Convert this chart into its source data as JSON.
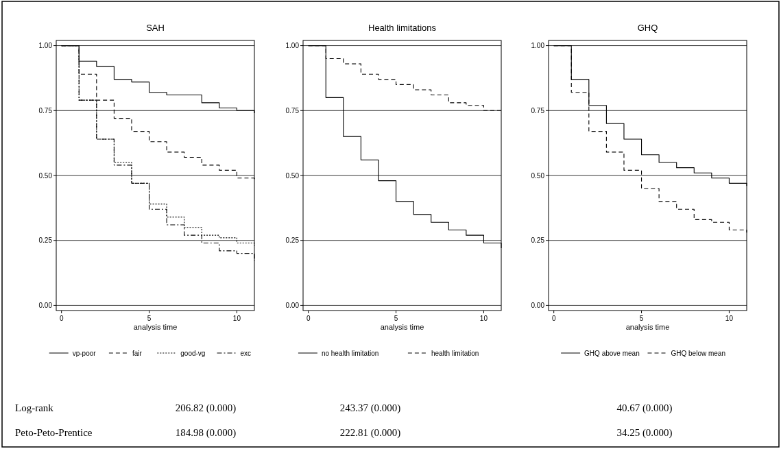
{
  "chart_data": [
    {
      "type": "step",
      "title": "SAH",
      "xlabel": "analysis time",
      "x": [
        0,
        1,
        2,
        3,
        4,
        5,
        6,
        7,
        8,
        9,
        10,
        11
      ],
      "xlim": [
        -0.3,
        11
      ],
      "xticks": [
        0,
        5,
        10
      ],
      "ylim": [
        -0.02,
        1.02
      ],
      "yticks": [
        {
          "value": 0,
          "label": "0.00"
        },
        {
          "value": 0.25,
          "label": "0.25"
        },
        {
          "value": 0.5,
          "label": "0.50"
        },
        {
          "value": 0.75,
          "label": "0.75"
        },
        {
          "value": 1,
          "label": "1.00"
        }
      ],
      "grid": "y",
      "legend": "bottom",
      "series": [
        {
          "name": "vp-poor",
          "color": "#000000",
          "line_style": "solid",
          "values": [
            1,
            0.94,
            0.92,
            0.87,
            0.86,
            0.82,
            0.81,
            0.81,
            0.78,
            0.76,
            0.75,
            0.74
          ]
        },
        {
          "name": "fair",
          "color": "#000000",
          "line_style": "dashed",
          "values": [
            1,
            0.89,
            0.79,
            0.72,
            0.67,
            0.63,
            0.59,
            0.57,
            0.54,
            0.52,
            0.49,
            0.48
          ]
        },
        {
          "name": "good-vg",
          "color": "#000000",
          "line_style": "dotted",
          "values": [
            1,
            0.79,
            0.64,
            0.55,
            0.47,
            0.39,
            0.34,
            0.3,
            0.27,
            0.26,
            0.24,
            0.23
          ]
        },
        {
          "name": "exc",
          "color": "#000000",
          "line_style": "dashdot",
          "values": [
            1,
            0.79,
            0.64,
            0.54,
            0.47,
            0.37,
            0.31,
            0.27,
            0.24,
            0.21,
            0.2,
            0.17
          ]
        }
      ],
      "annotations": [
        "Log-rank",
        "Peto-Peto-Prentice",
        "206.82 (0.000)",
        "184.98 (0.000)"
      ]
    },
    {
      "type": "step",
      "title": "Health limitations",
      "xlabel": "analysis time",
      "x": [
        0,
        1,
        2,
        3,
        4,
        5,
        6,
        7,
        8,
        9,
        10,
        11
      ],
      "xlim": [
        -0.3,
        11
      ],
      "xticks": [
        0,
        5,
        10
      ],
      "ylim": [
        -0.02,
        1.02
      ],
      "yticks": [
        {
          "value": 0,
          "label": "0.00"
        },
        {
          "value": 0.25,
          "label": "0.25"
        },
        {
          "value": 0.5,
          "label": "0.50"
        },
        {
          "value": 0.75,
          "label": "0.75"
        },
        {
          "value": 1,
          "label": "1.00"
        }
      ],
      "grid": "y",
      "legend": "bottom",
      "series": [
        {
          "name": "no health limitation",
          "color": "#000000",
          "line_style": "solid",
          "values": [
            1,
            0.8,
            0.65,
            0.56,
            0.48,
            0.4,
            0.35,
            0.32,
            0.29,
            0.27,
            0.24,
            0.22
          ]
        },
        {
          "name": "health limitation",
          "color": "#000000",
          "line_style": "dashed",
          "values": [
            1,
            0.95,
            0.93,
            0.89,
            0.87,
            0.85,
            0.83,
            0.81,
            0.78,
            0.77,
            0.75,
            0.75
          ]
        }
      ],
      "annotations": [
        "243.37 (0.000)",
        "222.81 (0.000)"
      ]
    },
    {
      "type": "step",
      "title": "GHQ",
      "xlabel": "analysis time",
      "x": [
        0,
        1,
        2,
        3,
        4,
        5,
        6,
        7,
        8,
        9,
        10,
        11
      ],
      "xlim": [
        -0.3,
        11
      ],
      "xticks": [
        0,
        5,
        10
      ],
      "ylim": [
        -0.02,
        1.02
      ],
      "yticks": [
        {
          "value": 0,
          "label": "0.00"
        },
        {
          "value": 0.25,
          "label": "0.25"
        },
        {
          "value": 0.5,
          "label": "0.50"
        },
        {
          "value": 0.75,
          "label": "0.75"
        },
        {
          "value": 1,
          "label": "1.00"
        }
      ],
      "grid": "y",
      "legend": "bottom",
      "series": [
        {
          "name": "GHQ above mean",
          "color": "#000000",
          "line_style": "solid",
          "values": [
            1,
            0.87,
            0.77,
            0.7,
            0.64,
            0.58,
            0.55,
            0.53,
            0.51,
            0.49,
            0.47,
            0.46
          ]
        },
        {
          "name": "GHQ below mean",
          "color": "#000000",
          "line_style": "dashed",
          "values": [
            1,
            0.82,
            0.67,
            0.59,
            0.52,
            0.45,
            0.4,
            0.37,
            0.33,
            0.32,
            0.29,
            0.28
          ]
        }
      ],
      "annotations": [
        "40.67 (0.000)",
        "34.25 (0.000)"
      ]
    }
  ]
}
